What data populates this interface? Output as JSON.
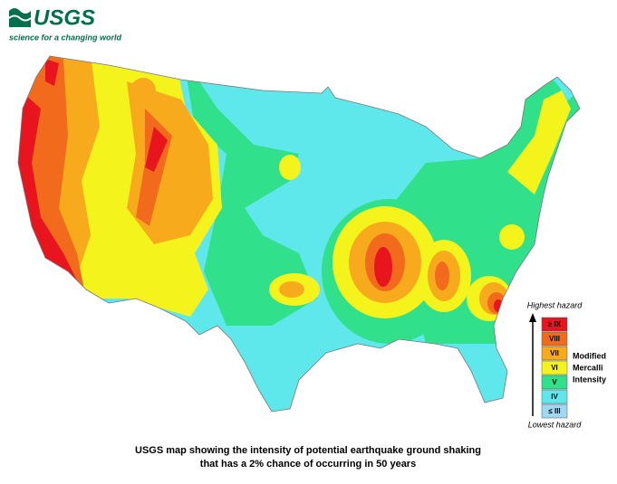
{
  "header": {
    "logo": "USGS",
    "tagline": "science for a changing world"
  },
  "legend": {
    "top_label": "Highest hazard",
    "bottom_label": "Lowest hazard",
    "title": [
      "Modified",
      "Mercalli",
      "Intensity"
    ],
    "classes": [
      {
        "label": "≥ IX",
        "color": "#e8141e"
      },
      {
        "label": "VIII",
        "color": "#f26b1d"
      },
      {
        "label": "VII",
        "color": "#f7aa1c"
      },
      {
        "label": "VI",
        "color": "#f4f41c"
      },
      {
        "label": "V",
        "color": "#30e08a"
      },
      {
        "label": "IV",
        "color": "#5fe8ec"
      },
      {
        "label": "≤ III",
        "color": "#9fd8f2"
      }
    ]
  },
  "caption": [
    "USGS map showing the intensity of potential earthquake ground shaking",
    "that has a 2% chance of occurring in 50 years"
  ]
}
